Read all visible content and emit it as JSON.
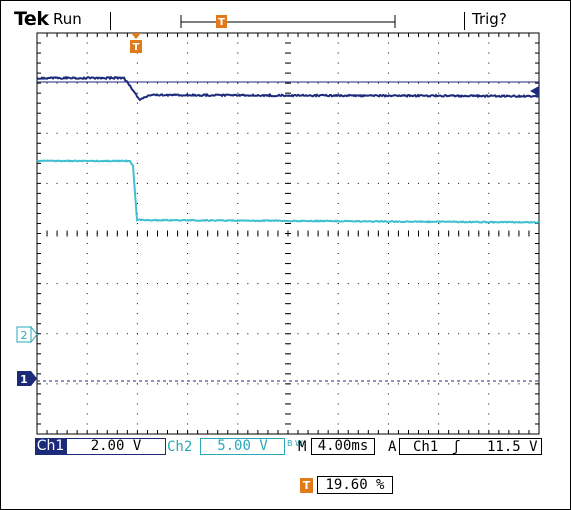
{
  "header": {
    "brand": "Tek",
    "run_state": "Run",
    "trigger_state": "Trig?",
    "record_trigger_marker": "T"
  },
  "trigger_marker": "T",
  "channel_markers": {
    "ch2": "2",
    "ch1": "1"
  },
  "colors": {
    "ch1": "#1c2a7a",
    "ch2": "#3fbfcf",
    "trigger": "#e07a1a",
    "grid": "#000000"
  },
  "readout": {
    "ch1_label": "Ch1",
    "ch1_scale": "2.00 V",
    "ch2_label": "Ch2",
    "ch2_scale": "5.00 V",
    "bw_label": "B W",
    "timebase_prefix": "M",
    "timebase": "4.00ms",
    "trigger_mode": "A",
    "trigger_source": "Ch1",
    "trigger_slope": "ʃ",
    "trigger_level": "11.5 V"
  },
  "horizontal_position": {
    "marker": "T",
    "value": "19.60 %"
  }
}
